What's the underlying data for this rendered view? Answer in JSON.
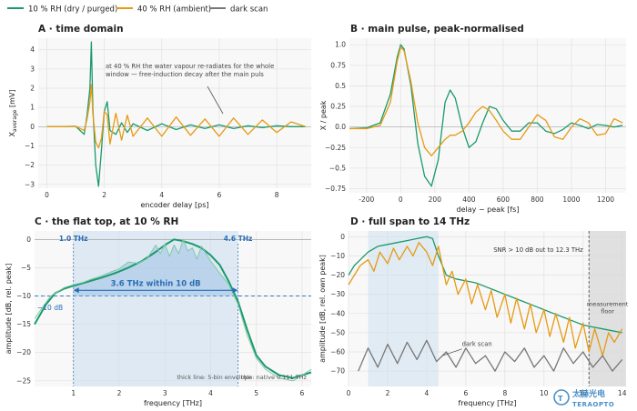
{
  "legend": {
    "items": [
      {
        "label": "10 % RH  (dry / purged)",
        "color": "#1a9a6c"
      },
      {
        "label": "40 % RH  (ambient)",
        "color": "#e69a12"
      },
      {
        "label": "dark scan",
        "color": "#777777"
      }
    ]
  },
  "watermark": {
    "cn": "太赫光电",
    "en": "TERAOPTO"
  },
  "chart_data": [
    {
      "id": "A",
      "type": "line",
      "title": "A · time domain",
      "xlabel": "encoder delay [ps]",
      "ylabel": "X_average [mV]",
      "xlim": [
        -0.3,
        9.2
      ],
      "ylim": [
        -3.2,
        4.6
      ],
      "xticks": [
        0,
        2,
        4,
        6,
        8
      ],
      "yticks": [
        -3,
        -2,
        -1,
        0,
        1,
        2,
        3,
        4
      ],
      "annotation": "at 40 % RH the water vapour re-radiates for the whole window — free-induction decay after the main pulse",
      "series": [
        {
          "name": "10 % RH  (dry / purged)",
          "color": "#1a9a6c",
          "x": [
            0,
            0.5,
            1.0,
            1.3,
            1.4,
            1.5,
            1.55,
            1.6,
            1.7,
            1.8,
            1.9,
            2.0,
            2.1,
            2.2,
            2.4,
            2.6,
            2.8,
            3.0,
            3.5,
            4.0,
            4.5,
            5.0,
            5.5,
            6.0,
            6.5,
            7.0,
            7.5,
            8.0,
            8.5,
            9.0
          ],
          "y": [
            0,
            0,
            0.02,
            -0.4,
            0.6,
            2.0,
            4.4,
            1.0,
            -2.0,
            -3.1,
            -1.2,
            0.8,
            1.3,
            -0.2,
            -0.4,
            0.2,
            -0.3,
            0.15,
            -0.2,
            0.15,
            -0.15,
            0.1,
            -0.1,
            0.1,
            -0.1,
            0.05,
            -0.05,
            0.05,
            0,
            0
          ]
        },
        {
          "name": "40 % RH  (ambient)",
          "color": "#e69a12",
          "x": [
            0,
            0.5,
            1.0,
            1.3,
            1.4,
            1.5,
            1.55,
            1.6,
            1.7,
            1.8,
            1.9,
            2.0,
            2.1,
            2.2,
            2.4,
            2.6,
            2.8,
            3.0,
            3.5,
            4.0,
            4.5,
            5.0,
            5.5,
            6.0,
            6.5,
            7.0,
            7.5,
            8.0,
            8.5,
            9.0
          ],
          "y": [
            0,
            0,
            0.02,
            -0.2,
            0.4,
            1.3,
            2.2,
            0.7,
            -0.8,
            -1.1,
            -0.6,
            0.8,
            0.6,
            -0.9,
            0.7,
            -0.7,
            0.6,
            -0.5,
            0.45,
            -0.5,
            0.5,
            -0.45,
            0.4,
            -0.5,
            0.45,
            -0.4,
            0.35,
            -0.3,
            0.25,
            0
          ]
        }
      ]
    },
    {
      "id": "B",
      "type": "line",
      "title": "B · main pulse, peak-normalised",
      "xlabel": "delay − peak [fs]",
      "ylabel": "X / peak",
      "xlim": [
        -300,
        1320
      ],
      "ylim": [
        -0.8,
        1.08
      ],
      "xticks": [
        -200,
        0,
        200,
        400,
        600,
        800,
        1000,
        1200
      ],
      "yticks": [
        -0.75,
        -0.5,
        -0.25,
        0.0,
        0.25,
        0.5,
        0.75,
        1.0
      ],
      "series": [
        {
          "name": "10 % RH  (dry / purged)",
          "color": "#1a9a6c",
          "x": [
            -300,
            -200,
            -120,
            -60,
            -20,
            0,
            20,
            60,
            100,
            140,
            180,
            220,
            260,
            290,
            320,
            360,
            400,
            440,
            480,
            520,
            560,
            600,
            650,
            700,
            750,
            800,
            850,
            900,
            950,
            1000,
            1050,
            1100,
            1150,
            1200,
            1250,
            1300
          ],
          "y": [
            -0.02,
            -0.01,
            0.05,
            0.4,
            0.85,
            1.0,
            0.95,
            0.5,
            -0.2,
            -0.6,
            -0.72,
            -0.4,
            0.3,
            0.45,
            0.35,
            0.0,
            -0.25,
            -0.18,
            0.05,
            0.25,
            0.22,
            0.08,
            -0.05,
            -0.05,
            0.05,
            0.05,
            -0.05,
            -0.08,
            -0.03,
            0.05,
            0.02,
            -0.02,
            0.03,
            0.02,
            0.0,
            0.02
          ]
        },
        {
          "name": "40 % RH  (ambient)",
          "color": "#e69a12",
          "x": [
            -300,
            -200,
            -120,
            -60,
            -20,
            0,
            20,
            60,
            100,
            140,
            180,
            220,
            260,
            290,
            320,
            360,
            400,
            440,
            480,
            520,
            560,
            600,
            650,
            700,
            750,
            800,
            850,
            900,
            950,
            1000,
            1050,
            1100,
            1150,
            1200,
            1250,
            1300
          ],
          "y": [
            -0.02,
            -0.02,
            0.02,
            0.3,
            0.8,
            0.97,
            0.93,
            0.55,
            0.05,
            -0.25,
            -0.35,
            -0.25,
            -0.15,
            -0.1,
            -0.1,
            -0.05,
            0.05,
            0.18,
            0.25,
            0.2,
            0.08,
            -0.05,
            -0.15,
            -0.15,
            0.0,
            0.15,
            0.08,
            -0.12,
            -0.15,
            0.0,
            0.1,
            0.05,
            -0.1,
            -0.08,
            0.1,
            0.05
          ]
        }
      ]
    },
    {
      "id": "C",
      "type": "line",
      "title": "C · the flat top, at 10 % RH",
      "xlabel": "frequency [THz]",
      "ylabel": "amplitude [dB, rel. peak]",
      "xlim": [
        0.15,
        6.2
      ],
      "ylim": [
        -26,
        1.5
      ],
      "xticks": [
        1,
        2,
        3,
        4,
        5,
        6
      ],
      "yticks": [
        0,
        -5,
        -10,
        -15,
        -20,
        -25
      ],
      "band": [
        1.0,
        4.6
      ],
      "threshold_db": -10,
      "band_start_label": "1.0 THz",
      "band_end_label": "4.6 THz",
      "band_label": "3.6 THz within 10 dB",
      "threshold_label": "−10 dB",
      "footnote_left": "thick line: 5-bin envelope",
      "footnote_right": "thin: native 0.111 THz",
      "series": [
        {
          "name": "5-bin envelope",
          "color": "#1a9a6c",
          "x": [
            0.15,
            0.4,
            0.6,
            0.8,
            1.0,
            1.3,
            1.6,
            1.9,
            2.2,
            2.5,
            2.8,
            3.0,
            3.2,
            3.4,
            3.6,
            3.8,
            4.0,
            4.2,
            4.4,
            4.6,
            4.8,
            5.0,
            5.2,
            5.5,
            5.8,
            6.0,
            6.2
          ],
          "y": [
            -15,
            -11.5,
            -9.5,
            -8.7,
            -8.2,
            -7.5,
            -6.8,
            -6.0,
            -5.0,
            -3.8,
            -2.2,
            -1.0,
            0.0,
            -0.3,
            -0.8,
            -1.5,
            -2.8,
            -4.5,
            -7.5,
            -11,
            -16,
            -20.5,
            -22.5,
            -24,
            -24.5,
            -24,
            -23.5
          ]
        },
        {
          "name": "native 0.111 THz",
          "color": "#82c8a8",
          "x": [
            0.15,
            0.5,
            0.8,
            1.0,
            1.2,
            1.4,
            1.6,
            1.8,
            2.0,
            2.2,
            2.4,
            2.6,
            2.8,
            2.9,
            3.0,
            3.1,
            3.2,
            3.3,
            3.4,
            3.5,
            3.6,
            3.7,
            3.8,
            3.9,
            4.0,
            4.2,
            4.4,
            4.6,
            4.8,
            5.0,
            5.2,
            5.5,
            5.8,
            6.0,
            6.2
          ],
          "y": [
            -14,
            -10,
            -8.5,
            -8.0,
            -7.6,
            -7.0,
            -6.5,
            -5.8,
            -5.2,
            -4.0,
            -4.2,
            -3.5,
            -1.0,
            -2.5,
            -0.8,
            -3.0,
            -1.0,
            -2.5,
            0.0,
            -2.0,
            -1.5,
            -3.5,
            -1.2,
            -2.5,
            -3.8,
            -6.0,
            -8.0,
            -11.5,
            -17,
            -21,
            -23,
            -24.5,
            -25,
            -24,
            -23
          ]
        }
      ]
    },
    {
      "id": "D",
      "type": "line",
      "title": "D · full span to 14 THz",
      "xlabel": "frequency [THz]",
      "ylabel": "amplitude [dB, rel. own peak]",
      "xlim": [
        0,
        14.2
      ],
      "ylim": [
        -78,
        3
      ],
      "xticks": [
        0,
        2,
        4,
        6,
        8,
        10,
        12,
        14
      ],
      "yticks": [
        0,
        -10,
        -20,
        -30,
        -40,
        -50,
        -60,
        -70
      ],
      "shaded_band": [
        1.0,
        4.6
      ],
      "floor_region": [
        12.3,
        14.2
      ],
      "snr_text": "SNR > 10 dB out to 12.3 THz",
      "floor_text": "measurement floor",
      "dark_label": "dark scan",
      "series": [
        {
          "name": "10 % RH  (dry / purged)",
          "color": "#1a9a6c",
          "x": [
            0.0,
            0.3,
            0.6,
            1.0,
            1.5,
            2.0,
            2.5,
            3.0,
            3.5,
            4.0,
            4.3,
            4.6,
            5.0,
            5.5,
            6.0,
            6.5,
            7.0,
            7.5,
            8.0,
            8.5,
            9.0,
            9.5,
            10.0,
            10.5,
            11.0,
            11.5,
            12.0,
            12.5,
            13.0,
            13.5,
            14.0
          ],
          "y": [
            -20,
            -15,
            -12,
            -8,
            -5,
            -4,
            -3,
            -2,
            -1,
            0,
            -1,
            -10,
            -20,
            -22,
            -23,
            -24,
            -26,
            -28,
            -30,
            -32,
            -34,
            -36,
            -38,
            -40,
            -42,
            -44,
            -46,
            -47,
            -48,
            -49,
            -50
          ]
        },
        {
          "name": "40 % RH  (ambient)",
          "color": "#e69a12",
          "x": [
            0.0,
            0.3,
            0.6,
            1.0,
            1.3,
            1.6,
            2.0,
            2.3,
            2.6,
            3.0,
            3.3,
            3.6,
            4.0,
            4.3,
            4.6,
            5.0,
            5.3,
            5.6,
            6.0,
            6.3,
            6.6,
            7.0,
            7.3,
            7.6,
            8.0,
            8.3,
            8.6,
            9.0,
            9.3,
            9.6,
            10.0,
            10.3,
            10.6,
            11.0,
            11.3,
            11.6,
            12.0,
            12.3,
            12.6,
            13.0,
            13.3,
            13.6,
            14.0
          ],
          "y": [
            -25,
            -20,
            -15,
            -12,
            -18,
            -8,
            -14,
            -6,
            -12,
            -5,
            -10,
            -3,
            -8,
            -15,
            -5,
            -25,
            -18,
            -30,
            -22,
            -35,
            -25,
            -38,
            -28,
            -42,
            -30,
            -45,
            -32,
            -48,
            -35,
            -50,
            -38,
            -52,
            -40,
            -55,
            -42,
            -58,
            -45,
            -60,
            -48,
            -62,
            -50,
            -55,
            -48
          ]
        },
        {
          "name": "dark scan",
          "color": "#777777",
          "x": [
            0.5,
            1.0,
            1.5,
            2.0,
            2.5,
            3.0,
            3.5,
            4.0,
            4.5,
            5.0,
            5.5,
            6.0,
            6.5,
            7.0,
            7.5,
            8.0,
            8.5,
            9.0,
            9.5,
            10.0,
            10.5,
            11.0,
            11.5,
            12.0,
            12.5,
            13.0,
            13.5,
            14.0
          ],
          "y": [
            -70,
            -58,
            -68,
            -56,
            -66,
            -55,
            -64,
            -54,
            -65,
            -60,
            -68,
            -58,
            -66,
            -62,
            -70,
            -60,
            -65,
            -58,
            -68,
            -62,
            -70,
            -58,
            -66,
            -60,
            -68,
            -62,
            -70,
            -64
          ]
        }
      ]
    }
  ]
}
